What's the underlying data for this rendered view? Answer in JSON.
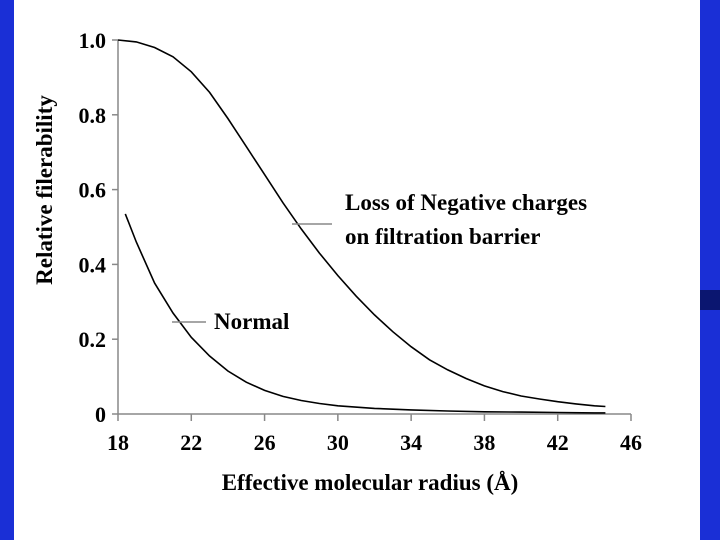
{
  "chart_data": {
    "type": "line",
    "xlabel": "Effective molecular radius (Å)",
    "ylabel": "Relative filerability",
    "xlim": [
      18,
      46
    ],
    "ylim": [
      0,
      1.0
    ],
    "x_ticks": [
      "18",
      "22",
      "26",
      "30",
      "34",
      "38",
      "42",
      "46"
    ],
    "y_ticks": [
      "0",
      "0.2",
      "0.4",
      "0.6",
      "0.8",
      "1.0"
    ],
    "grid": false,
    "series": [
      {
        "name": "Loss of Negative charges on filtration barrier",
        "label_lines": [
          "Loss of Negative charges",
          "on filtration barrier"
        ],
        "x": [
          18,
          19,
          20,
          21,
          22,
          23,
          24,
          25,
          26,
          27,
          28,
          29,
          30,
          31,
          32,
          33,
          34,
          35,
          36,
          37,
          38,
          39,
          40,
          41,
          42,
          43,
          44,
          44.6
        ],
        "y": [
          1.0,
          0.995,
          0.98,
          0.955,
          0.915,
          0.86,
          0.79,
          0.715,
          0.64,
          0.565,
          0.495,
          0.43,
          0.37,
          0.315,
          0.265,
          0.22,
          0.18,
          0.145,
          0.118,
          0.095,
          0.075,
          0.06,
          0.048,
          0.04,
          0.033,
          0.027,
          0.022,
          0.02
        ]
      },
      {
        "name": "Normal",
        "label_lines": [
          "Normal"
        ],
        "x": [
          18.4,
          19,
          20,
          21,
          22,
          23,
          24,
          25,
          26,
          27,
          28,
          29,
          30,
          32,
          34,
          36,
          38,
          40,
          42,
          44,
          44.6
        ],
        "y": [
          0.535,
          0.46,
          0.35,
          0.27,
          0.205,
          0.155,
          0.115,
          0.085,
          0.063,
          0.047,
          0.036,
          0.028,
          0.022,
          0.015,
          0.011,
          0.008,
          0.006,
          0.005,
          0.004,
          0.003,
          0.003
        ]
      }
    ]
  }
}
